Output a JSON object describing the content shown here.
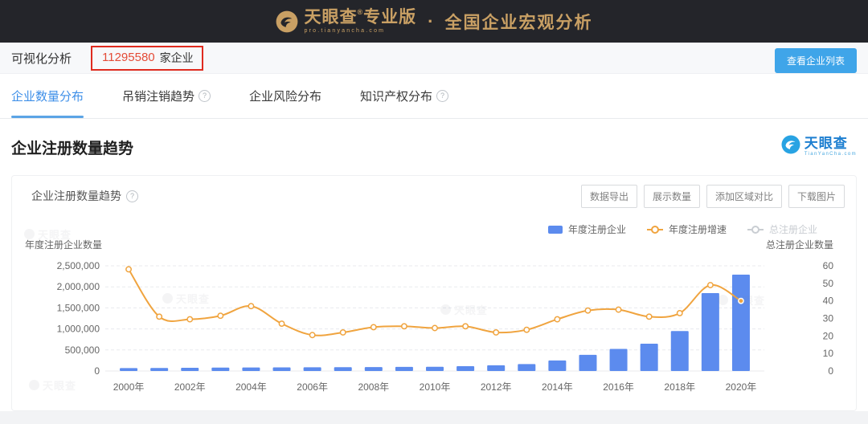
{
  "header": {
    "brand": "天眼查",
    "brand_reg": "®",
    "brand_suffix": "专业版",
    "brand_sub": "pro.tianyancha.com",
    "separator": "·",
    "title": "全国企业宏观分析"
  },
  "toolbar": {
    "label": "可视化分析",
    "count": "11295580",
    "count_suffix": "家企业",
    "view_list_button": "查看企业列表"
  },
  "tabs": [
    {
      "label": "企业数量分布",
      "active": true,
      "help": false
    },
    {
      "label": "吊销注销趋势",
      "active": false,
      "help": true
    },
    {
      "label": "企业风险分布",
      "active": false,
      "help": false
    },
    {
      "label": "知识产权分布",
      "active": false,
      "help": true
    }
  ],
  "section": {
    "title": "企业注册数量趋势",
    "logo_text": "天眼查",
    "logo_sub": "TianYanCha.com"
  },
  "card": {
    "title": "企业注册数量趋势",
    "buttons": [
      "数据导出",
      "展示数量",
      "添加区域对比",
      "下载图片"
    ]
  },
  "icons": {
    "help": "?"
  },
  "watermark": {
    "text": "天眼查"
  },
  "colors": {
    "topbar_bg": "#24252A",
    "gold": "#C9A064",
    "annotation_red": "#DF2B1F",
    "count_red": "#E44B37",
    "button_blue": "#3FA5E9",
    "active_tab_blue": "#3E8FE8",
    "bar_blue": "#5C8BEE",
    "line_orange": "#F0A43F",
    "disabled_grey": "#C9CDD2"
  },
  "chart_data": {
    "type": "bar+line",
    "title": "企业注册数量趋势",
    "categories": [
      "2000年",
      "2001年",
      "2002年",
      "2003年",
      "2004年",
      "2005年",
      "2006年",
      "2007年",
      "2008年",
      "2009年",
      "2010年",
      "2011年",
      "2012年",
      "2013年",
      "2014年",
      "2015年",
      "2016年",
      "2017年",
      "2018年",
      "2019年",
      "2020年"
    ],
    "series": [
      {
        "name": "年度注册企业",
        "type": "bar",
        "yaxis": "left",
        "color": "#5C8BEE",
        "values": [
          68000,
          72000,
          76000,
          80000,
          84000,
          86000,
          88000,
          90000,
          94000,
          97000,
          100000,
          115000,
          135000,
          165000,
          250000,
          385000,
          525000,
          650000,
          950000,
          1850000,
          2290000
        ]
      },
      {
        "name": "年度注册增速",
        "type": "line",
        "yaxis": "right",
        "color": "#F0A43F",
        "values": [
          58,
          31,
          29.5,
          31.5,
          37,
          27,
          20.5,
          22,
          25,
          25.5,
          24.5,
          25.5,
          22,
          23.5,
          29.5,
          34.5,
          35,
          31,
          33,
          49,
          40
        ]
      },
      {
        "name": "总注册企业",
        "type": "line",
        "yaxis": "right",
        "color": "#C9CDD2",
        "disabled": true,
        "values": []
      }
    ],
    "left_axis": {
      "title": "年度注册企业数量",
      "min": 0,
      "max": 2500000,
      "tick_labels": [
        "0",
        "500,000",
        "1,000,000",
        "1,500,000",
        "2,000,000",
        "2,500,000"
      ]
    },
    "right_axis": {
      "title": "总注册企业数量",
      "min": 0,
      "max": 60,
      "tick_labels": [
        "0",
        "10",
        "20",
        "30",
        "40",
        "50",
        "60"
      ]
    },
    "x_label_every": 2,
    "grid": "dashed-horizontal",
    "legend_position": "top-right"
  }
}
